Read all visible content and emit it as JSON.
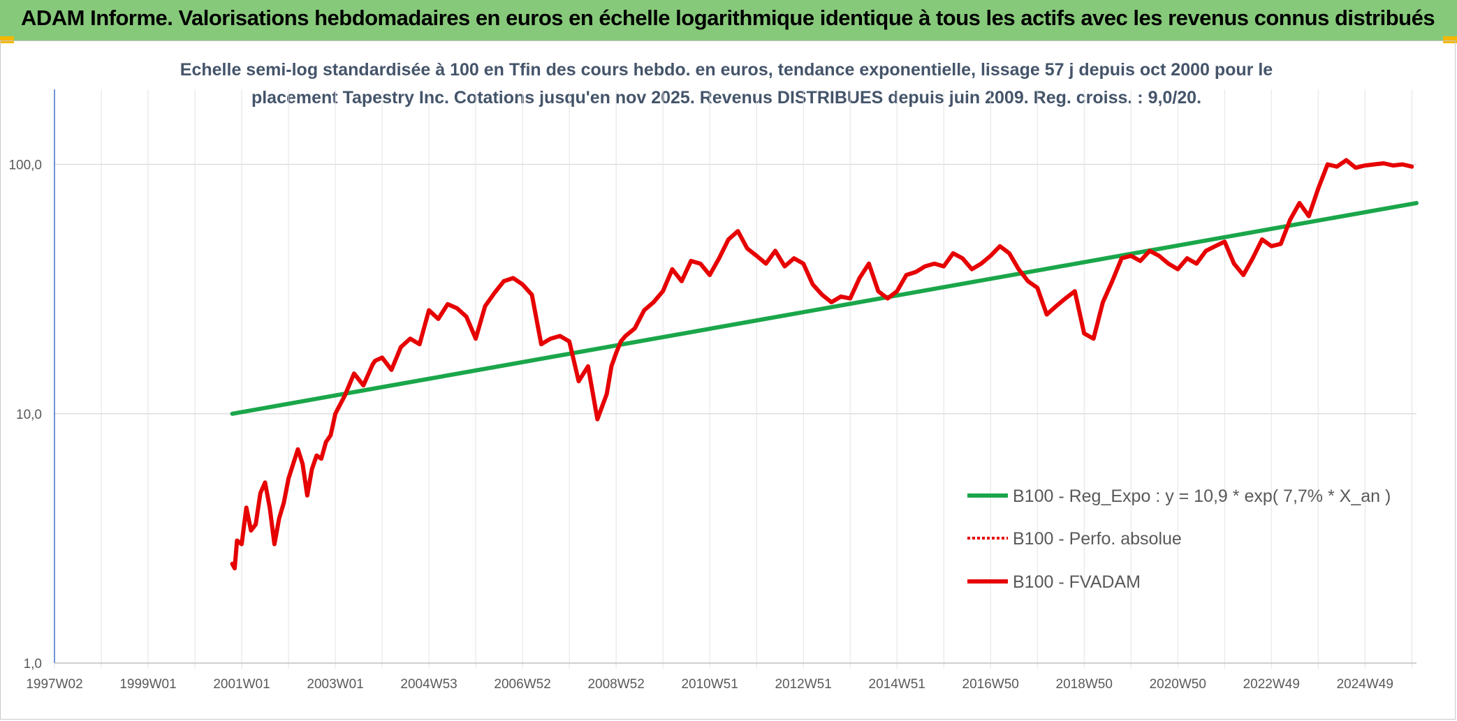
{
  "header": {
    "title": "ADAM Informe. Valorisations hebdomadaires en euros en échelle logarithmique identique à tous les actifs avec les revenus connus distribués"
  },
  "chart_data": {
    "type": "line",
    "title_lines": [
      "Echelle semi-log standardisée à 100 en Tfin des cours hebdo. en euros, tendance exponentielle, lissage 57 j depuis oct 2000 pour le",
      "placement Tapestry Inc. Cotations jusqu'en nov 2025. Revenus DISTRIBUES depuis juin 2009. Reg. croiss. : 9,0/20."
    ],
    "y_scale": "log",
    "ylim": [
      1,
      200
    ],
    "xlim": [
      1997.0,
      2026.1
    ],
    "y_ticks": [
      {
        "value": 1,
        "label": "1,0"
      },
      {
        "value": 10,
        "label": "10,0"
      },
      {
        "value": 100,
        "label": "100,0"
      }
    ],
    "x_ticks": [
      {
        "value": 1997.0,
        "label": "1997W02"
      },
      {
        "value": 1999.0,
        "label": "1999W01"
      },
      {
        "value": 2001.0,
        "label": "2001W01"
      },
      {
        "value": 2003.0,
        "label": "2003W01"
      },
      {
        "value": 2005.0,
        "label": "2004W53"
      },
      {
        "value": 2007.0,
        "label": "2006W52"
      },
      {
        "value": 2009.0,
        "label": "2008W52"
      },
      {
        "value": 2011.0,
        "label": "2010W51"
      },
      {
        "value": 2013.0,
        "label": "2012W51"
      },
      {
        "value": 2015.0,
        "label": "2014W51"
      },
      {
        "value": 2017.0,
        "label": "2016W50"
      },
      {
        "value": 2019.0,
        "label": "2018W50"
      },
      {
        "value": 2021.0,
        "label": "2020W50"
      },
      {
        "value": 2023.0,
        "label": "2022W49"
      },
      {
        "value": 2025.0,
        "label": "2024W49"
      }
    ],
    "minor_x_ticks": [
      1998.0,
      2000.0,
      2002.0,
      2004.0,
      2006.0,
      2008.0,
      2010.0,
      2012.0,
      2014.0,
      2016.0,
      2018.0,
      2020.0,
      2022.0,
      2024.0,
      2026.0
    ],
    "grid": true,
    "legend_position": "bottom-right",
    "series": [
      {
        "name": "B100 - Reg_Expo : y = 10,9 * exp( 7,7% *  X_an )",
        "color": "#1aa64a",
        "style": "solid",
        "x": [
          2000.8,
          2026.1
        ],
        "y": [
          10.0,
          70.0
        ]
      },
      {
        "name": "B100 - Perfo. absolue",
        "color": "#e60000",
        "style": "dotted",
        "x": [],
        "y": []
      },
      {
        "name": "B100 - FVADAM",
        "color": "#e60000",
        "style": "solid",
        "x": [
          2000.8,
          2000.85,
          2000.9,
          2001.0,
          2001.1,
          2001.2,
          2001.3,
          2001.4,
          2001.5,
          2001.6,
          2001.7,
          2001.8,
          2001.9,
          2002.0,
          2002.1,
          2002.2,
          2002.3,
          2002.4,
          2002.5,
          2002.6,
          2002.7,
          2002.8,
          2002.9,
          2003.0,
          2003.2,
          2003.4,
          2003.6,
          2003.8,
          2003.85,
          2004.0,
          2004.2,
          2004.4,
          2004.6,
          2004.8,
          2005.0,
          2005.2,
          2005.4,
          2005.6,
          2005.8,
          2006.0,
          2006.2,
          2006.4,
          2006.6,
          2006.8,
          2007.0,
          2007.2,
          2007.4,
          2007.6,
          2007.8,
          2008.0,
          2008.2,
          2008.4,
          2008.6,
          2008.8,
          2008.9,
          2009.0,
          2009.1,
          2009.2,
          2009.4,
          2009.6,
          2009.8,
          2010.0,
          2010.2,
          2010.4,
          2010.6,
          2010.8,
          2011.0,
          2011.2,
          2011.4,
          2011.6,
          2011.8,
          2012.0,
          2012.2,
          2012.4,
          2012.6,
          2012.8,
          2013.0,
          2013.2,
          2013.4,
          2013.6,
          2013.8,
          2014.0,
          2014.2,
          2014.4,
          2014.6,
          2014.8,
          2015.0,
          2015.2,
          2015.4,
          2015.6,
          2015.8,
          2016.0,
          2016.2,
          2016.4,
          2016.6,
          2016.8,
          2017.0,
          2017.2,
          2017.4,
          2017.6,
          2017.8,
          2018.0,
          2018.2,
          2018.4,
          2018.6,
          2018.8,
          2019.0,
          2019.2,
          2019.4,
          2019.6,
          2019.8,
          2020.0,
          2020.2,
          2020.4,
          2020.6,
          2020.8,
          2021.0,
          2021.2,
          2021.4,
          2021.6,
          2021.8,
          2022.0,
          2022.2,
          2022.4,
          2022.6,
          2022.8,
          2023.0,
          2023.2,
          2023.4,
          2023.6,
          2023.8,
          2024.0,
          2024.2,
          2024.4,
          2024.6,
          2024.8,
          2025.0,
          2025.2,
          2025.4,
          2025.6,
          2025.8,
          2026.0
        ],
        "y": [
          2.5,
          2.4,
          3.1,
          3.0,
          4.2,
          3.4,
          3.6,
          4.8,
          5.3,
          4.2,
          3.0,
          3.8,
          4.4,
          5.5,
          6.3,
          7.2,
          6.3,
          4.7,
          6.0,
          6.8,
          6.6,
          7.7,
          8.2,
          10.0,
          11.8,
          14.5,
          13.0,
          15.8,
          16.3,
          16.8,
          15.0,
          18.5,
          20.0,
          19.0,
          26.0,
          24.0,
          27.5,
          26.5,
          24.5,
          20.0,
          27.0,
          30.5,
          34.0,
          35.0,
          33.0,
          30.0,
          19.0,
          20.0,
          20.5,
          19.5,
          13.5,
          15.5,
          9.5,
          12.0,
          15.5,
          17.5,
          19.5,
          20.5,
          22.0,
          26.0,
          28.0,
          31.0,
          38.0,
          34.0,
          41.0,
          40.0,
          36.0,
          42.0,
          50.0,
          54.0,
          46.0,
          43.0,
          40.0,
          45.0,
          39.0,
          42.0,
          40.0,
          33.0,
          30.0,
          28.0,
          29.5,
          29.0,
          35.0,
          40.0,
          31.0,
          29.0,
          31.0,
          36.0,
          37.0,
          39.0,
          40.0,
          39.0,
          44.0,
          42.0,
          38.0,
          40.0,
          43.0,
          47.0,
          44.0,
          38.0,
          34.0,
          32.0,
          25.0,
          27.0,
          29.0,
          31.0,
          21.0,
          20.0,
          28.0,
          34.0,
          42.0,
          43.0,
          41.0,
          45.0,
          43.0,
          40.0,
          38.0,
          42.0,
          40.0,
          45.0,
          47.0,
          49.0,
          40.0,
          36.0,
          42.0,
          50.0,
          47.0,
          48.0,
          60.0,
          70.0,
          62.0,
          80.0,
          100.0,
          98.0,
          104.0,
          97.0,
          99.0,
          100.0,
          101.0,
          99.0,
          100.0,
          98.0
        ]
      }
    ]
  }
}
